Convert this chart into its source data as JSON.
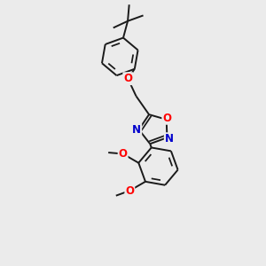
{
  "background_color": "#ebebeb",
  "bond_color": "#1a1a1a",
  "oxygen_color": "#ff0000",
  "nitrogen_color": "#0000cc",
  "font_size": 8.5,
  "line_width": 1.4,
  "figsize": [
    3.0,
    3.0
  ],
  "dpi": 100,
  "xlim": [
    0,
    10
  ],
  "ylim": [
    0,
    10
  ]
}
